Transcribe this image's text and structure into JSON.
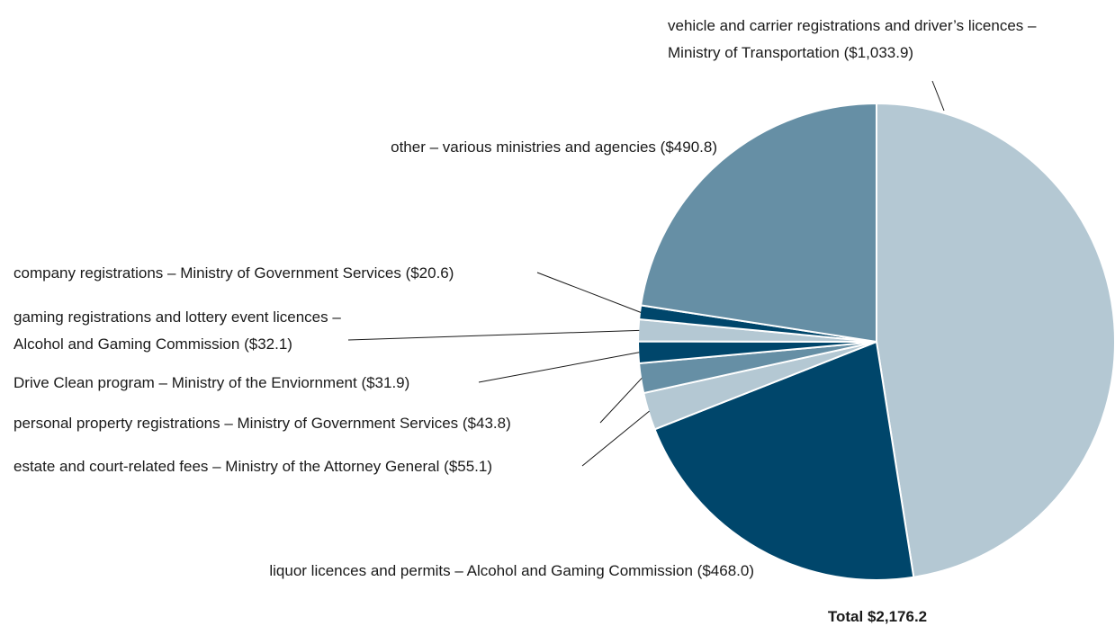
{
  "chart_data": {
    "type": "pie",
    "categories": [
      "vehicle and carrier registrations and driver’s licences –\nMinistry of Transportation",
      "liquor licences and permits – Alcohol and Gaming Commission",
      "estate and court-related fees – Ministry of the Attorney General",
      "personal property registrations – Ministry of Government Services",
      "Drive Clean program – Ministry of the Enviornment",
      "gaming registrations and lottery event licences –\nAlcohol and Gaming Commission",
      "company registrations – Ministry of Government Services",
      "other – various ministries and agencies"
    ],
    "values": [
      1033.9,
      468.0,
      55.1,
      43.8,
      31.9,
      32.1,
      20.6,
      490.8
    ],
    "value_labels": [
      "($1,033.9)",
      "($468.0)",
      "($55.1)",
      "($43.8)",
      "($31.9)",
      "($32.1)",
      "($20.6)",
      "($490.8)"
    ],
    "colors": [
      "#b4c8d3",
      "#00466b",
      "#b4c8d3",
      "#668fa5",
      "#00466b",
      "#b4c8d3",
      "#00466b",
      "#668fa5"
    ],
    "total_label": "Total $2,176.2"
  }
}
